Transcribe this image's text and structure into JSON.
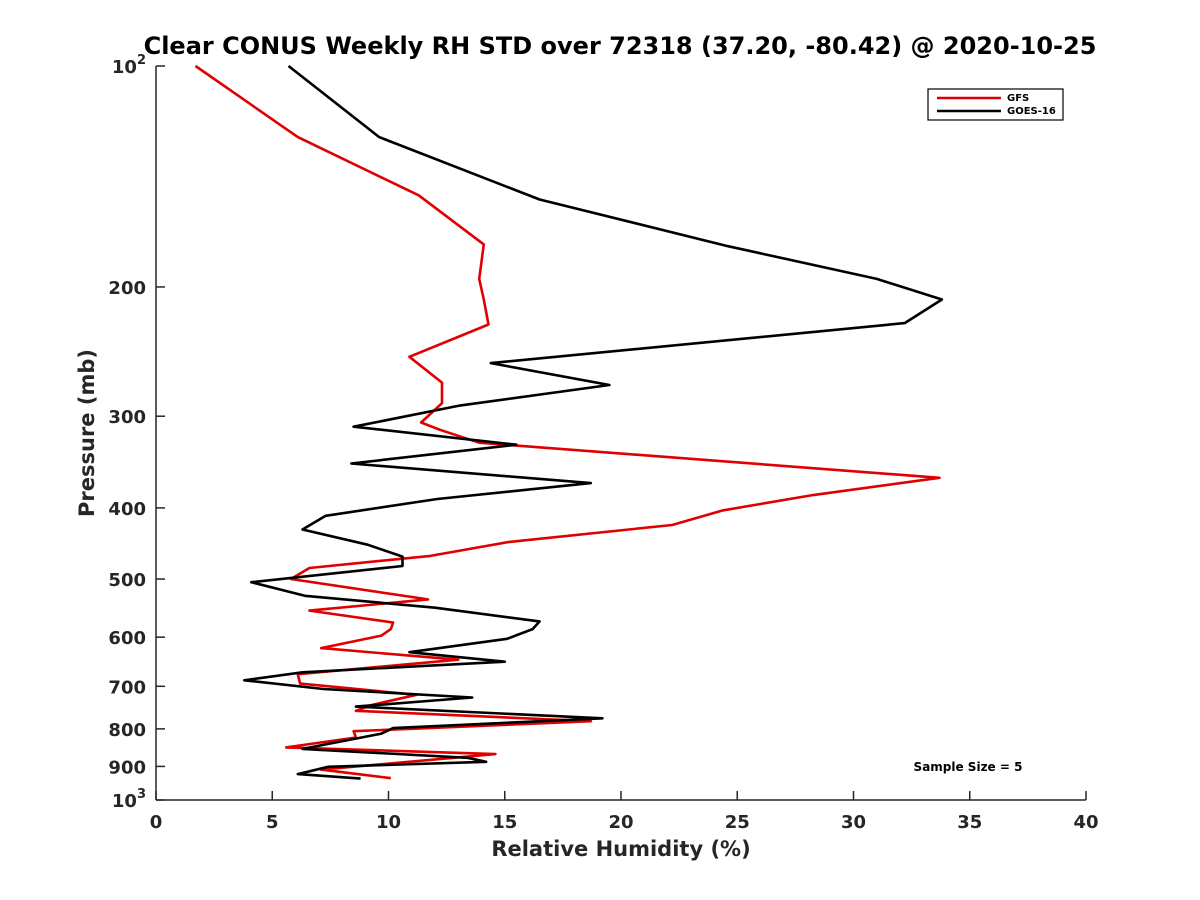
{
  "chart_data": {
    "type": "line",
    "title": "Clear CONUS Weekly RH STD over 72318 (37.20, -80.42) @ 2020-10-25",
    "xlabel": "Relative Humidity (%)",
    "ylabel": "Pressure (mb)",
    "xlim": [
      0,
      40
    ],
    "ylim": [
      100,
      1000
    ],
    "y_scale": "log",
    "y_reversed": true,
    "grid": false,
    "legend_position": "top-right",
    "x_ticks": [
      "0",
      "5",
      "10",
      "15",
      "20",
      "25",
      "30",
      "35",
      "40"
    ],
    "y_ticks": [
      {
        "value": 100,
        "label": "10",
        "sup": "2"
      },
      {
        "value": 200,
        "label": "200",
        "sup": ""
      },
      {
        "value": 300,
        "label": "300",
        "sup": ""
      },
      {
        "value": 400,
        "label": "400",
        "sup": ""
      },
      {
        "value": 500,
        "label": "500",
        "sup": ""
      },
      {
        "value": 600,
        "label": "600",
        "sup": ""
      },
      {
        "value": 700,
        "label": "700",
        "sup": ""
      },
      {
        "value": 800,
        "label": "800",
        "sup": ""
      },
      {
        "value": 900,
        "label": "900",
        "sup": ""
      },
      {
        "value": 1000,
        "label": "10",
        "sup": "3"
      }
    ],
    "annotation": "Sample Size = 5",
    "series": [
      {
        "name": "GFS",
        "color": "#e00000",
        "points": [
          [
            1.7,
            100
          ],
          [
            6.1,
            125
          ],
          [
            11.3,
            150
          ],
          [
            14.1,
            175
          ],
          [
            13.9,
            195
          ],
          [
            14.1,
            208
          ],
          [
            14.3,
            225
          ],
          [
            10.9,
            249
          ],
          [
            12.3,
            270
          ],
          [
            12.3,
            288
          ],
          [
            11.4,
            306
          ],
          [
            12.2,
            313
          ],
          [
            13.9,
            326
          ],
          [
            33.7,
            364
          ],
          [
            28.3,
            384
          ],
          [
            24.4,
            403
          ],
          [
            22.2,
            422
          ],
          [
            15.2,
            445
          ],
          [
            11.8,
            465
          ],
          [
            6.6,
            483
          ],
          [
            5.8,
            500
          ],
          [
            11.7,
            533
          ],
          [
            6.6,
            552
          ],
          [
            10.2,
            573
          ],
          [
            10.1,
            585
          ],
          [
            9.7,
            597
          ],
          [
            7.1,
            621
          ],
          [
            13.0,
            644
          ],
          [
            6.1,
            674
          ],
          [
            6.2,
            694
          ],
          [
            11.2,
            719
          ],
          [
            9.3,
            742
          ],
          [
            8.6,
            756
          ],
          [
            18.7,
            781
          ],
          [
            8.5,
            806
          ],
          [
            8.6,
            822
          ],
          [
            5.6,
            848
          ],
          [
            14.6,
            866
          ],
          [
            7.1,
            909
          ],
          [
            10.1,
            934
          ]
        ]
      },
      {
        "name": "GOES-16",
        "color": "#000000",
        "points": [
          [
            5.7,
            100
          ],
          [
            9.6,
            125
          ],
          [
            16.5,
            152
          ],
          [
            24.6,
            176
          ],
          [
            31.0,
            195
          ],
          [
            33.8,
            208
          ],
          [
            32.2,
            224
          ],
          [
            14.4,
            254
          ],
          [
            19.5,
            272
          ],
          [
            13.1,
            290
          ],
          [
            8.5,
            310
          ],
          [
            15.5,
            328
          ],
          [
            8.4,
            348
          ],
          [
            18.7,
            370
          ],
          [
            12.1,
            389
          ],
          [
            7.3,
            410
          ],
          [
            6.3,
            428
          ],
          [
            9.1,
            449
          ],
          [
            10.6,
            466
          ],
          [
            10.6,
            480
          ],
          [
            4.1,
            505
          ],
          [
            6.4,
            527
          ],
          [
            12.0,
            547
          ],
          [
            16.5,
            571
          ],
          [
            16.2,
            585
          ],
          [
            15.1,
            603
          ],
          [
            10.9,
            629
          ],
          [
            15.0,
            648
          ],
          [
            6.3,
            670
          ],
          [
            3.8,
            687
          ],
          [
            7.2,
            706
          ],
          [
            13.6,
            725
          ],
          [
            8.6,
            746
          ],
          [
            19.2,
            774
          ],
          [
            10.2,
            798
          ],
          [
            9.7,
            812
          ],
          [
            6.3,
            852
          ],
          [
            13.4,
            876
          ],
          [
            14.2,
            887
          ],
          [
            7.4,
            901
          ],
          [
            6.1,
            922
          ],
          [
            8.8,
            935
          ]
        ]
      }
    ]
  }
}
